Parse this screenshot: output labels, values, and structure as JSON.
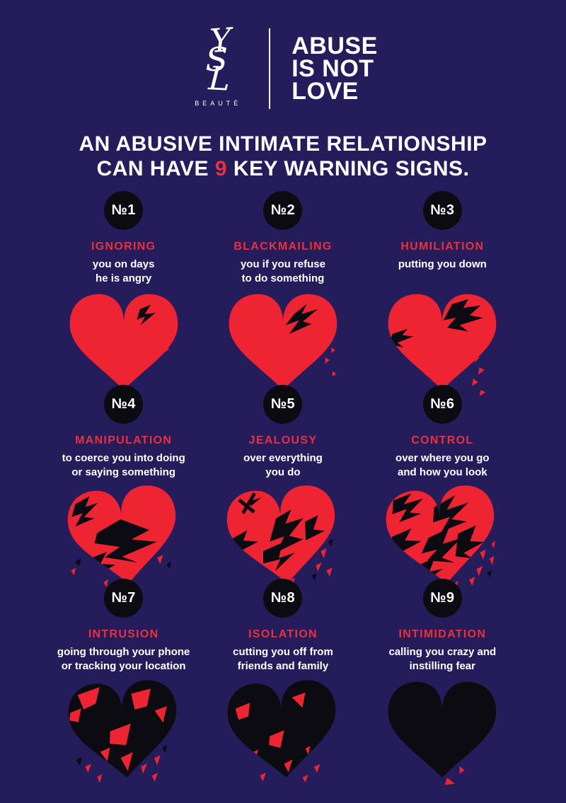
{
  "colors": {
    "background": "#251d5b",
    "text_red": "#e8303f",
    "heart_red": "#ee2433",
    "ink_black": "#0c0b11",
    "white": "#ffffff"
  },
  "header": {
    "monogram_letters": [
      "Y",
      "S",
      "L"
    ],
    "beaute_label": "BEAUTÉ",
    "campaign_lines": [
      "ABUSE",
      "IS NOT",
      "LOVE"
    ]
  },
  "headline": {
    "line1": "AN ABUSIVE INTIMATE RELATIONSHIP",
    "line2_prefix": "CAN HAVE ",
    "line2_number": "9",
    "line2_suffix": " KEY WARNING SIGNS."
  },
  "items": [
    {
      "number": "№1",
      "title": "IGNORING",
      "description": "you on days\nhe is angry",
      "heart_icon": "broken-heart-stage-1-icon"
    },
    {
      "number": "№2",
      "title": "BLACKMAILING",
      "description": "you if you refuse\nto do something",
      "heart_icon": "broken-heart-stage-2-icon"
    },
    {
      "number": "№3",
      "title": "HUMILIATION",
      "description": "putting you down",
      "heart_icon": "broken-heart-stage-3-icon"
    },
    {
      "number": "№4",
      "title": "MANIPULATION",
      "description": "to coerce you into doing\nor saying something",
      "heart_icon": "broken-heart-stage-4-icon"
    },
    {
      "number": "№5",
      "title": "JEALOUSY",
      "description": "over everything\nyou do",
      "heart_icon": "broken-heart-stage-5-icon"
    },
    {
      "number": "№6",
      "title": "CONTROL",
      "description": "over where you go\nand how you look",
      "heart_icon": "broken-heart-stage-6-icon"
    },
    {
      "number": "№7",
      "title": "INTRUSION",
      "description": "going through your phone\nor tracking your location",
      "heart_icon": "broken-heart-stage-7-icon"
    },
    {
      "number": "№8",
      "title": "ISOLATION",
      "description": "cutting you off from\nfriends and family",
      "heart_icon": "broken-heart-stage-8-icon"
    },
    {
      "number": "№9",
      "title": "INTIMIDATION",
      "description": "calling you crazy and\ninstilling fear",
      "heart_icon": "broken-heart-stage-9-icon"
    }
  ]
}
